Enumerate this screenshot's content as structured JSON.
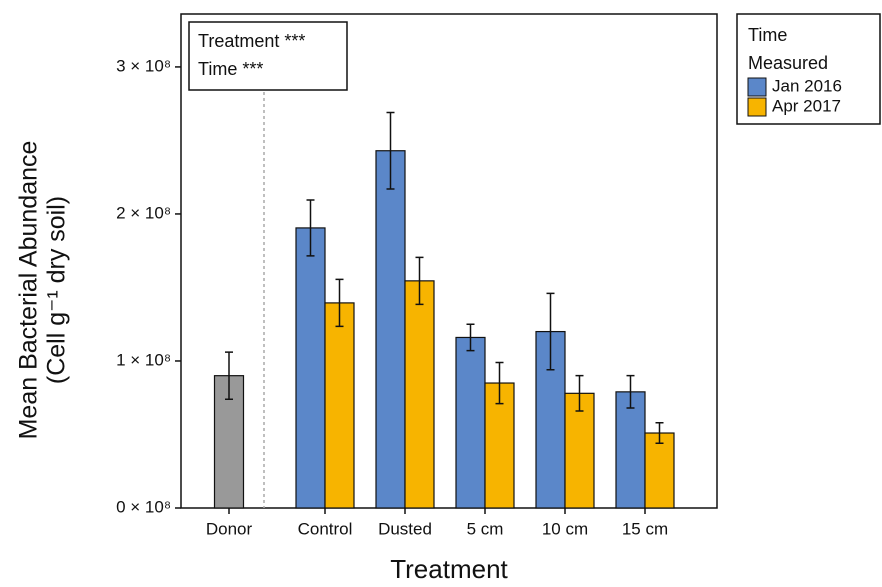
{
  "chart_data": {
    "type": "bar",
    "ylabel": [
      "Mean Bacterial Abundance",
      "(Cell g⁻¹ dry soil)"
    ],
    "xlabel": "Treatment",
    "categories": [
      "Donor",
      "Control",
      "Dusted",
      "5 cm",
      "10 cm",
      "15 cm"
    ],
    "series": [
      {
        "color": "#999999",
        "values": [
          90000000,
          null,
          null,
          null,
          null,
          null
        ],
        "errors": [
          16000000,
          null,
          null,
          null,
          null,
          null
        ]
      },
      {
        "name": "Jan 2016",
        "color": "#5b87c9",
        "values": [
          null,
          190500000,
          243000000,
          116000000,
          120000000,
          79000000
        ],
        "errors": [
          null,
          19000000,
          26000000,
          9000000,
          26000000,
          11000000
        ]
      },
      {
        "name": "Apr 2017",
        "color": "#f7b400",
        "values": [
          null,
          139500000,
          154500000,
          85000000,
          78000000,
          51000000
        ],
        "errors": [
          null,
          16000000,
          16000000,
          14000000,
          12000000,
          7000000
        ]
      }
    ],
    "legend_title": [
      "Time",
      "Measured"
    ],
    "annotations": [
      "Treatment ***",
      "Time ***"
    ],
    "ylim": [
      0,
      336000000
    ],
    "yticks": [
      {
        "value": 0,
        "label": "0 × 10⁸"
      },
      {
        "value": 100000000,
        "label": "1 × 10⁸"
      },
      {
        "value": 200000000,
        "label": "2 × 10⁸"
      },
      {
        "value": 300000000,
        "label": "3 × 10⁸"
      }
    ],
    "grid": false
  }
}
